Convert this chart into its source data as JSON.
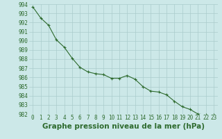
{
  "x": [
    0,
    1,
    2,
    3,
    4,
    5,
    6,
    7,
    8,
    9,
    10,
    11,
    12,
    13,
    14,
    15,
    16,
    17,
    18,
    19,
    20,
    21,
    22,
    23
  ],
  "y": [
    993.7,
    992.5,
    991.7,
    990.1,
    989.3,
    988.1,
    987.1,
    986.6,
    986.4,
    986.3,
    985.9,
    985.9,
    986.2,
    985.8,
    985.0,
    984.5,
    984.4,
    984.1,
    983.4,
    982.8,
    982.5,
    982.0,
    981.9,
    981.9
  ],
  "ylim": [
    982,
    994
  ],
  "xlim": [
    -0.5,
    23.5
  ],
  "yticks": [
    982,
    983,
    984,
    985,
    986,
    987,
    988,
    989,
    990,
    991,
    992,
    993,
    994
  ],
  "xticks": [
    0,
    1,
    2,
    3,
    4,
    5,
    6,
    7,
    8,
    9,
    10,
    11,
    12,
    13,
    14,
    15,
    16,
    17,
    18,
    19,
    20,
    21,
    22,
    23
  ],
  "xlabel": "Graphe pression niveau de la mer (hPa)",
  "line_color": "#2d6a2d",
  "marker": "+",
  "marker_size": 2.5,
  "bg_color": "#cce8e8",
  "grid_color": "#aacccc",
  "tick_fontsize": 5.5,
  "label_fontsize": 7.5
}
